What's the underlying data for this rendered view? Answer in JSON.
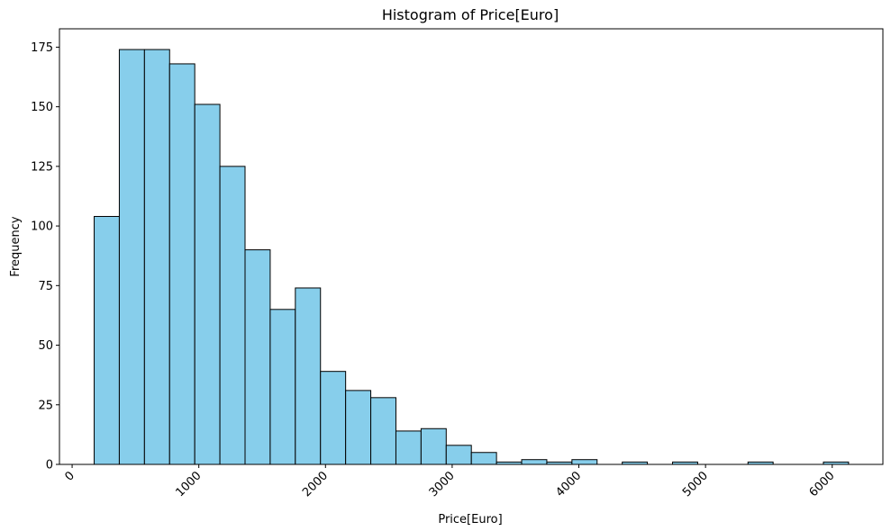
{
  "chart_data": {
    "type": "bar",
    "title": "Histogram of Price[Euro]",
    "xlabel": "Price[Euro]",
    "ylabel": "Frequency",
    "bin_edges": [
      174,
      372.5,
      571,
      769.5,
      968,
      1166.5,
      1365,
      1563.5,
      1762,
      1960.5,
      2159,
      2357.5,
      2556,
      2754.5,
      2953,
      3151.5,
      3350,
      3548.5,
      3747,
      3945.5,
      4144,
      4342.5,
      4541,
      4739.5,
      4938,
      5136.5,
      5335,
      5533.5,
      5732,
      5930.5,
      6129
    ],
    "values": [
      104,
      174,
      174,
      168,
      151,
      125,
      90,
      65,
      74,
      39,
      31,
      28,
      14,
      15,
      8,
      5,
      1,
      2,
      1,
      2,
      0,
      1,
      0,
      1,
      0,
      0,
      1,
      0,
      0,
      1
    ],
    "xlim": [
      -100,
      6400
    ],
    "ylim": [
      0,
      182.7
    ],
    "xticks": [
      0,
      1000,
      2000,
      3000,
      4000,
      5000,
      6000
    ],
    "xtick_labels": [
      "0",
      "1000",
      "2000",
      "3000",
      "4000",
      "5000",
      "6000"
    ],
    "yticks": [
      0,
      25,
      50,
      75,
      100,
      125,
      150,
      175
    ],
    "ytick_labels": [
      "0",
      "25",
      "50",
      "75",
      "100",
      "125",
      "150",
      "175"
    ],
    "xtick_rotation_deg": 45,
    "grid": false,
    "bar_color": "#87ceeb",
    "edge_color": "#000000"
  }
}
